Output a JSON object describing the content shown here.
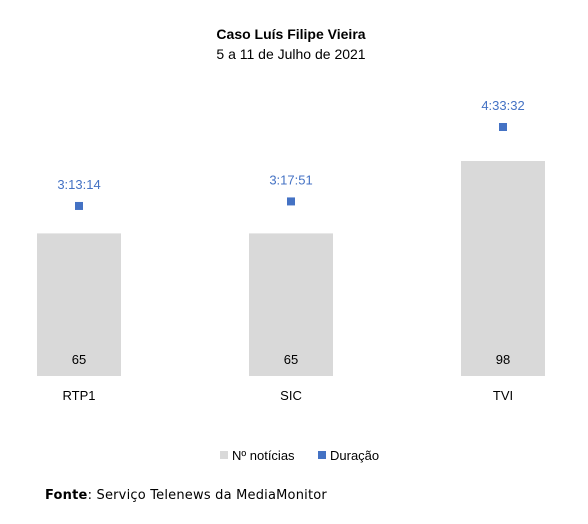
{
  "chart_data": {
    "type": "bar",
    "title": "Caso Luís Filipe Vieira",
    "subtitle": "5 a 11 de Julho de 2021",
    "categories": [
      "RTP1",
      "SIC",
      "TVI"
    ],
    "series": [
      {
        "name": "Nº notícias",
        "kind": "bar",
        "values": [
          65,
          65,
          98
        ],
        "labels": [
          "65",
          "65",
          "98"
        ],
        "color": "#d9d9d9"
      },
      {
        "name": "Duração",
        "kind": "marker",
        "values": [
          "3:13:14",
          "3:17:51",
          "4:33:32"
        ],
        "seconds": [
          11594,
          11871,
          16412
        ],
        "labels": [
          "3:13:14",
          "3:17:51",
          "4:33:32"
        ],
        "color": "#4472c4"
      }
    ],
    "legend": "bottom",
    "grid": false
  },
  "source": {
    "label": "Fonte",
    "text": ": Serviço Telenews da MediaMonitor"
  }
}
